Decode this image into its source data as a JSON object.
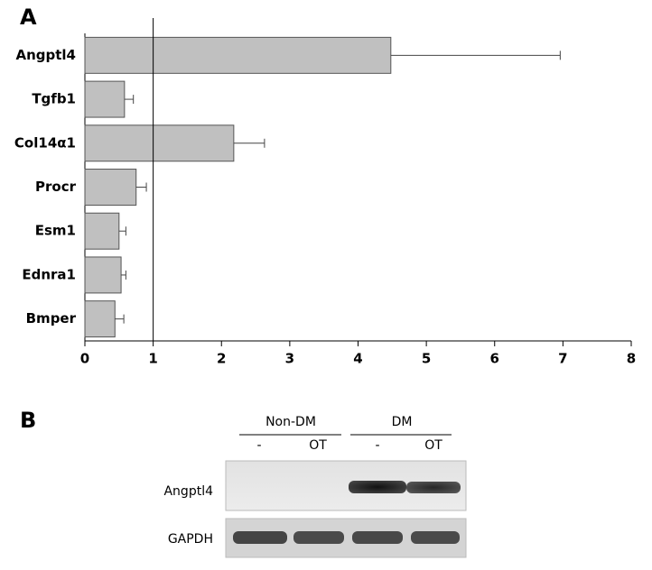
{
  "chart_data": {
    "type": "bar",
    "orientation": "horizontal",
    "panel_label": "A",
    "categories": [
      "Angptl4",
      "Tgfb1",
      "Col14α1",
      "Procr",
      "Esm1",
      "Ednra1",
      "Bmper"
    ],
    "values": [
      4.48,
      0.58,
      2.18,
      0.75,
      0.5,
      0.53,
      0.44
    ],
    "errors": [
      2.48,
      0.13,
      0.45,
      0.15,
      0.1,
      0.07,
      0.13
    ],
    "color": "#c0c0c0",
    "xlim": [
      0,
      8
    ],
    "xticks": [
      0,
      1,
      2,
      3,
      4,
      5,
      6,
      7,
      8
    ],
    "reference_line": 1
  },
  "blot": {
    "panel_label": "B",
    "groups": [
      {
        "label": "Non-DM",
        "lanes": [
          "-",
          "OT"
        ]
      },
      {
        "label": "DM",
        "lanes": [
          "-",
          "OT"
        ]
      }
    ],
    "rows": [
      "Angptl4",
      "GAPDH"
    ]
  }
}
